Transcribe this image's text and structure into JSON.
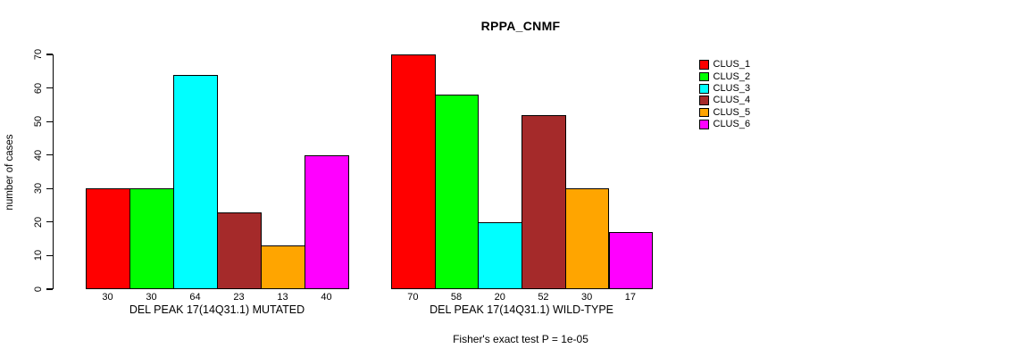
{
  "chart_data": {
    "type": "bar",
    "title": "RPPA_CNMF",
    "ylabel": "number of cases",
    "xlabel": "",
    "ylim": [
      0,
      70
    ],
    "yticks": [
      0,
      10,
      20,
      30,
      40,
      50,
      60,
      70
    ],
    "grid": false,
    "legend_position": "right",
    "series_names": [
      "CLUS_1",
      "CLUS_2",
      "CLUS_3",
      "CLUS_4",
      "CLUS_5",
      "CLUS_6"
    ],
    "colors": [
      "#FF0000",
      "#00FF00",
      "#00FFFF",
      "#A52A2A",
      "#FFA500",
      "#FF00FF"
    ],
    "groups": [
      {
        "label": "DEL PEAK 17(14Q31.1) MUTATED",
        "values": [
          30,
          30,
          64,
          23,
          13,
          40
        ]
      },
      {
        "label": "DEL PEAK 17(14Q31.1) WILD-TYPE",
        "values": [
          70,
          58,
          20,
          52,
          30,
          17
        ]
      }
    ],
    "bar_value_labels_shown": true,
    "annotation": "Fisher's exact test P = 1e-05"
  }
}
